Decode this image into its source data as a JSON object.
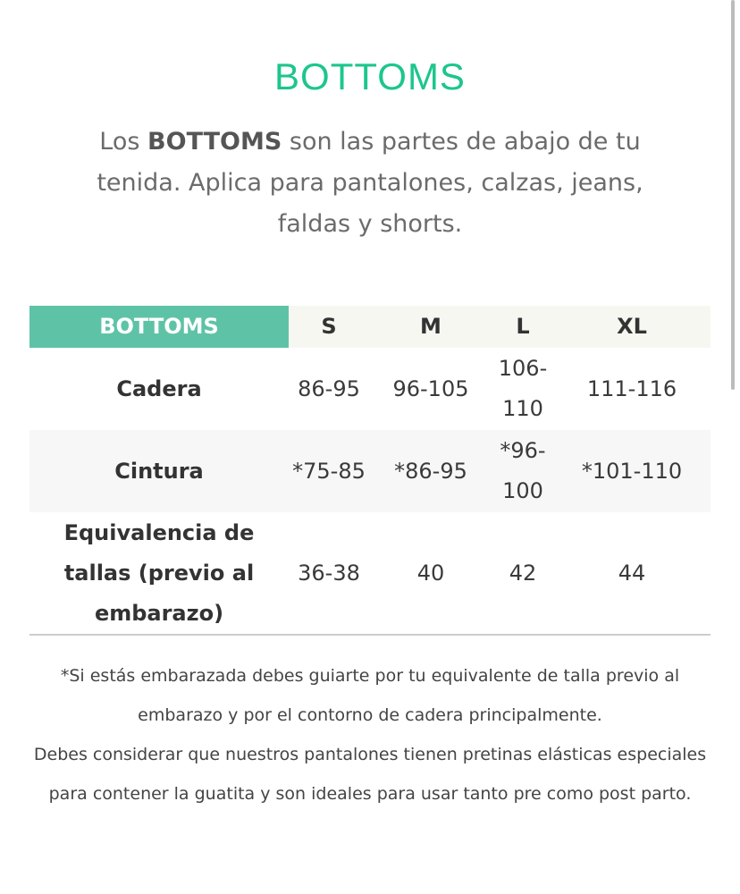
{
  "title": "BOTTOMS",
  "intro": {
    "pre": "Los ",
    "bold": "BOTTOMS",
    "post": " son las partes de abajo de tu tenida. Aplica para pantalones, calzas, jeans, faldas y shorts."
  },
  "table": {
    "headers": [
      "BOTTOMS",
      "S",
      "M",
      "L",
      "XL"
    ],
    "rows": [
      {
        "label": "Cadera",
        "values": [
          "86-95",
          "96-105",
          "106-110",
          "111-116"
        ]
      },
      {
        "label": "Cintura",
        "values": [
          "*75-85",
          "*86-95",
          "*96-100",
          "*101-110"
        ]
      },
      {
        "label": "Equivalencia de tallas (previo al embarazo)",
        "values": [
          "36-38",
          "40",
          "42",
          "44"
        ]
      }
    ]
  },
  "notes": [
    "*Si estás embarazada debes guiarte por tu equivalente de talla previo al embarazo y por el contorno de cadera principalmente.",
    "Debes considerar que nuestros pantalones tienen pretinas elásticas especiales para contener la guatita y son ideales para usar tanto pre como post parto."
  ],
  "colors": {
    "accent": "#1cc68c",
    "header_bg": "#5ec3a6"
  }
}
